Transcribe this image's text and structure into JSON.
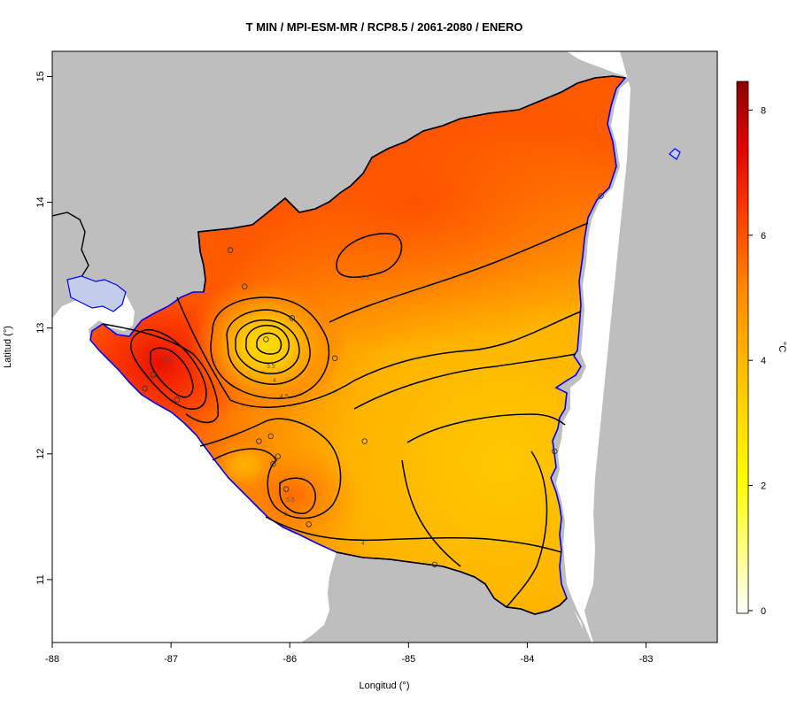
{
  "chart_data": {
    "type": "heatmap",
    "title": "T MIN / MPI-ESM-MR / RCP8.5 / 2061-2080 / ENERO",
    "xlabel": "Longitud (°)",
    "ylabel": "Latitud (°)",
    "xlim": [
      -88,
      -82.4
    ],
    "ylim": [
      10.5,
      15.2
    ],
    "x_ticks": [
      "-88",
      "-87",
      "-86",
      "-85",
      "-84",
      "-83"
    ],
    "y_ticks": [
      "11",
      "12",
      "13",
      "14",
      "15"
    ],
    "colorbar": {
      "label": "°C",
      "min": 0,
      "max": 8.5,
      "ticks": [
        "0",
        "2",
        "4",
        "6",
        "8"
      ],
      "colors": [
        "#ffffff",
        "#ffff00",
        "#ffd000",
        "#ff9a00",
        "#ff5000",
        "#e80000",
        "#8b0000"
      ]
    },
    "contour_labels": [
      "5.5",
      "6.5",
      "3.5",
      "4",
      "4.5",
      "5.5",
      "5",
      "4"
    ],
    "stations": [
      {
        "lon": -86.5,
        "lat": 13.62
      },
      {
        "lon": -86.38,
        "lat": 13.33
      },
      {
        "lon": -86.2,
        "lat": 12.91
      },
      {
        "lon": -85.98,
        "lat": 13.08
      },
      {
        "lon": -85.62,
        "lat": 12.76
      },
      {
        "lon": -87.15,
        "lat": 12.63
      },
      {
        "lon": -86.95,
        "lat": 12.43
      },
      {
        "lon": -87.22,
        "lat": 12.52
      },
      {
        "lon": -86.26,
        "lat": 12.1
      },
      {
        "lon": -86.16,
        "lat": 12.14
      },
      {
        "lon": -86.1,
        "lat": 11.98
      },
      {
        "lon": -86.14,
        "lat": 11.92
      },
      {
        "lon": -86.03,
        "lat": 11.72
      },
      {
        "lon": -85.84,
        "lat": 11.44
      },
      {
        "lon": -85.37,
        "lat": 12.1
      },
      {
        "lon": -84.78,
        "lat": 11.12
      },
      {
        "lon": -83.77,
        "lat": 12.02
      },
      {
        "lon": -83.38,
        "lat": 14.05
      }
    ]
  },
  "colors": {
    "land_bg": "#bebebe",
    "water": "#c4ccec",
    "coast": "#0000ff",
    "border": "#000000"
  }
}
